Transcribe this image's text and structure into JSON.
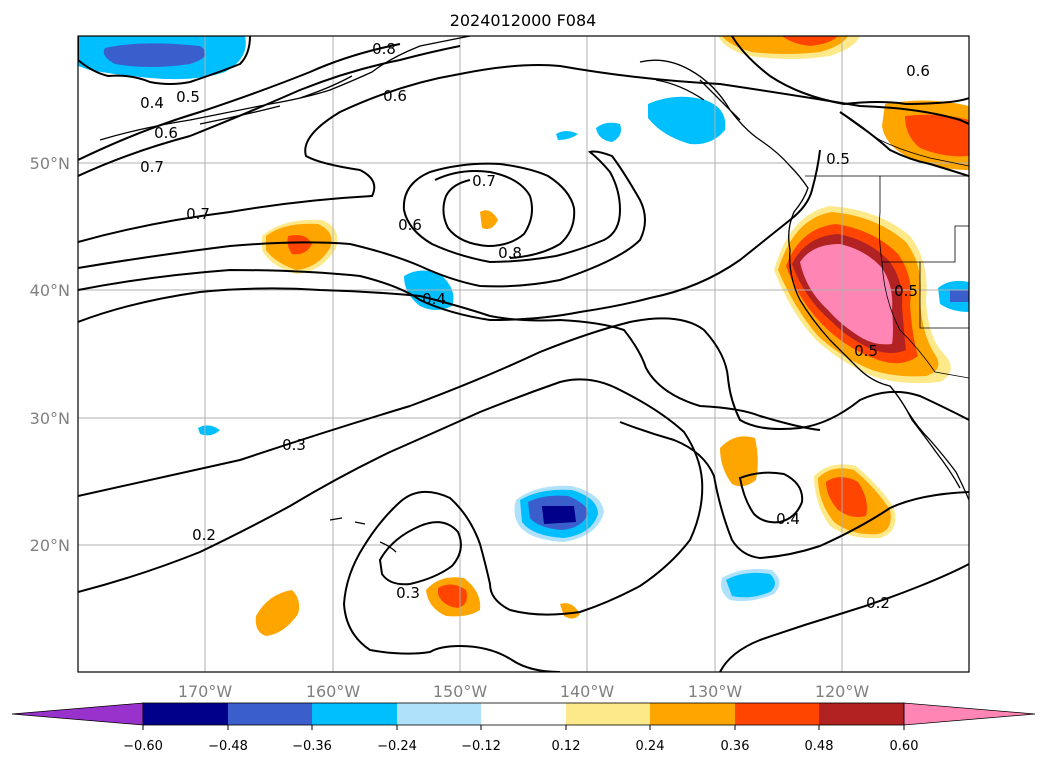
{
  "title": "2024012000 F084",
  "latitude_labels": [
    "50°N",
    "40°N",
    "30°N",
    "20°N"
  ],
  "longitude_labels": [
    "170°W",
    "160°W",
    "150°W",
    "140°W",
    "130°W",
    "120°W"
  ],
  "colorbar": {
    "ticks": [
      "−0.60",
      "−0.48",
      "−0.36",
      "−0.24",
      "−0.12",
      "0.12",
      "0.24",
      "0.36",
      "0.48",
      "0.60"
    ],
    "colors": [
      "#9932cc",
      "#00008b",
      "#3a5fcd",
      "#00bfff",
      "#afe1fa",
      "#ffffff",
      "#fde98a",
      "#ffa500",
      "#ff4500",
      "#b22222",
      "#ff86b4"
    ]
  },
  "contour_labels": [
    "0.8",
    "0.6",
    "0.4",
    "0.5",
    "0.6",
    "0.7",
    "0.7",
    "0.7",
    "0.6",
    "0.8",
    "0.4",
    "0.6",
    "0.5",
    "0.5",
    "0.5",
    "0.3",
    "0.2",
    "0.4",
    "0.3",
    "0.2"
  ],
  "map_extent": {
    "lon": [
      "180°W",
      "110°W"
    ],
    "lat": [
      "10°N",
      "60°N"
    ]
  }
}
